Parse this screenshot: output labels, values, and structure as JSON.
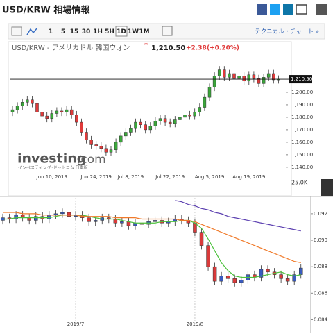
{
  "header": {
    "title": "USD/KRW 相場情報",
    "toolbar": [
      "1",
      "5",
      "15",
      "30",
      "1H",
      "5H",
      "1D",
      "1W",
      "1M"
    ],
    "active_index": 6,
    "technical_link": "テクニカル・チャート »"
  },
  "chart_data": [
    {
      "type": "candlestick",
      "title": "USD/KRW - アメリカドル 韓国ウォン",
      "last": {
        "value": 1210.5,
        "label": "1,210.50"
      },
      "change": "+2.38",
      "change_pct": "(+0.20%)",
      "watermark": "investing",
      "watermark_domain": ".com",
      "watermark_sub": "インベスティング･ドットコム 日本版",
      "volume_label": "25.0K",
      "up_color": "#3aa83a",
      "down_color": "#e03a3a",
      "categories": [
        null,
        null,
        null,
        null,
        null,
        null,
        null,
        null,
        "Jun 10, 2019",
        null,
        null,
        null,
        null,
        null,
        null,
        null,
        null,
        "Jun 24, 2019",
        null,
        null,
        null,
        null,
        null,
        null,
        "Jul 8, 2019",
        null,
        null,
        null,
        null,
        null,
        null,
        null,
        "Jul 22, 2019",
        null,
        null,
        null,
        null,
        null,
        null,
        null,
        "Aug 5, 2019",
        null,
        null,
        null,
        null,
        null,
        null,
        null,
        "Aug 19, 2019",
        null,
        null,
        null,
        null,
        null,
        null
      ],
      "open": [
        1184,
        1186,
        1189,
        1192,
        1194,
        1191,
        1184,
        1181,
        1179,
        1183,
        1185,
        1184,
        1186,
        1182,
        1176,
        1168,
        1162,
        1158,
        1157,
        1155,
        1152,
        1154,
        1160,
        1165,
        1168,
        1171,
        1176,
        1174,
        1170,
        1173,
        1177,
        1179,
        1176,
        1175,
        1178,
        1180,
        1182,
        1181,
        1184,
        1188,
        1196,
        1204,
        1213,
        1218,
        1212,
        1215,
        1211,
        1213,
        1209,
        1214,
        1211,
        1207,
        1212,
        1215,
        1210
      ],
      "high": [
        1189,
        1192,
        1195,
        1197,
        1197,
        1194,
        1187,
        1184,
        1186,
        1188,
        1188,
        1189,
        1189,
        1185,
        1179,
        1171,
        1165,
        1161,
        1160,
        1158,
        1157,
        1163,
        1168,
        1171,
        1174,
        1179,
        1179,
        1177,
        1176,
        1180,
        1182,
        1182,
        1179,
        1181,
        1183,
        1185,
        1185,
        1187,
        1191,
        1199,
        1207,
        1216,
        1221,
        1221,
        1218,
        1218,
        1216,
        1216,
        1217,
        1217,
        1214,
        1215,
        1218,
        1218,
        1213.5
      ],
      "low": [
        1181,
        1183,
        1186,
        1189,
        1188,
        1181,
        1178,
        1176,
        1176,
        1180,
        1181,
        1181,
        1179,
        1173,
        1165,
        1159,
        1155,
        1154,
        1152,
        1149,
        1149,
        1151,
        1157,
        1162,
        1165,
        1168,
        1171,
        1167,
        1167,
        1170,
        1174,
        1173,
        1172,
        1172,
        1175,
        1177,
        1178,
        1178,
        1181,
        1185,
        1193,
        1201,
        1210,
        1209,
        1209,
        1208,
        1208,
        1206,
        1206,
        1208,
        1204,
        1204,
        1209,
        1207,
        1207
      ],
      "close": [
        1186,
        1189,
        1192,
        1194,
        1191,
        1184,
        1181,
        1179,
        1183,
        1185,
        1184,
        1186,
        1182,
        1176,
        1168,
        1162,
        1158,
        1157,
        1155,
        1152,
        1154,
        1160,
        1165,
        1168,
        1171,
        1176,
        1174,
        1170,
        1173,
        1177,
        1179,
        1176,
        1175,
        1178,
        1180,
        1182,
        1181,
        1184,
        1188,
        1196,
        1204,
        1213,
        1218,
        1212,
        1215,
        1211,
        1213,
        1209,
        1214,
        1211,
        1207,
        1212,
        1215,
        1210,
        1210.5
      ],
      "ylim": [
        1121,
        1225
      ],
      "yticks": [
        {
          "value": 1140,
          "label": "1,140.00"
        },
        {
          "value": 1150,
          "label": "1,150.00"
        },
        {
          "value": 1160,
          "label": "1,160.00"
        },
        {
          "value": 1170,
          "label": "1,170.00"
        },
        {
          "value": 1180,
          "label": "1,180.00"
        },
        {
          "value": 1190,
          "label": "1,190.00"
        },
        {
          "value": 1200,
          "label": "1,200.00"
        }
      ]
    },
    {
      "type": "candlestick",
      "up_color": "#3a5bbf",
      "down_color": "#d93a3a",
      "categories": [
        null,
        null,
        null,
        null,
        null,
        null,
        null,
        null,
        null,
        null,
        null,
        "2019/7",
        null,
        null,
        null,
        null,
        null,
        null,
        null,
        null,
        null,
        null,
        null,
        null,
        null,
        null,
        null,
        null,
        null,
        "2019/8",
        null,
        null,
        null,
        null,
        null,
        null,
        null,
        null,
        null,
        null,
        null,
        null,
        null,
        null,
        null,
        null
      ],
      "open": [
        0.0915,
        0.0917,
        0.0916,
        0.0919,
        0.0917,
        0.0915,
        0.0918,
        0.0916,
        0.0919,
        0.092,
        0.0921,
        0.0918,
        0.0919,
        0.0917,
        0.0914,
        0.0915,
        0.0917,
        0.0916,
        0.0913,
        0.0914,
        0.0911,
        0.0913,
        0.0912,
        0.0914,
        0.0915,
        0.0913,
        0.0914,
        0.0916,
        0.0915,
        0.0913,
        0.0906,
        0.0896,
        0.088,
        0.0869,
        0.0873,
        0.0871,
        0.0868,
        0.087,
        0.0874,
        0.0872,
        0.0878,
        0.0876,
        0.0874,
        0.0871,
        0.0869,
        0.0874
      ],
      "high": [
        0.092,
        0.092,
        0.0922,
        0.0922,
        0.092,
        0.0921,
        0.0921,
        0.0922,
        0.0923,
        0.0924,
        0.0924,
        0.0922,
        0.0922,
        0.092,
        0.0918,
        0.092,
        0.092,
        0.0919,
        0.0917,
        0.0917,
        0.0916,
        0.0916,
        0.0917,
        0.0918,
        0.0918,
        0.0917,
        0.0919,
        0.0919,
        0.0918,
        0.0916,
        0.0909,
        0.0899,
        0.0883,
        0.0876,
        0.0876,
        0.0874,
        0.0873,
        0.0877,
        0.0877,
        0.0881,
        0.0881,
        0.0879,
        0.0877,
        0.0874,
        0.0877,
        0.0882
      ],
      "low": [
        0.0912,
        0.0913,
        0.0913,
        0.0914,
        0.0912,
        0.0912,
        0.0913,
        0.0913,
        0.0916,
        0.0917,
        0.0915,
        0.0915,
        0.0914,
        0.0911,
        0.0911,
        0.0912,
        0.0913,
        0.091,
        0.091,
        0.0908,
        0.0908,
        0.0909,
        0.0909,
        0.0911,
        0.091,
        0.091,
        0.0911,
        0.0912,
        0.091,
        0.0903,
        0.0893,
        0.0877,
        0.0866,
        0.0866,
        0.0868,
        0.0865,
        0.0865,
        0.0867,
        0.0869,
        0.0869,
        0.0873,
        0.0871,
        0.0868,
        0.0866,
        0.0866,
        0.0871
      ],
      "close": [
        0.0917,
        0.0916,
        0.0919,
        0.0917,
        0.0915,
        0.0918,
        0.0916,
        0.0919,
        0.092,
        0.0921,
        0.0918,
        0.0919,
        0.0917,
        0.0914,
        0.0915,
        0.0917,
        0.0916,
        0.0913,
        0.0914,
        0.0911,
        0.0913,
        0.0912,
        0.0914,
        0.0915,
        0.0913,
        0.0914,
        0.0916,
        0.0915,
        0.0913,
        0.0906,
        0.0896,
        0.088,
        0.0869,
        0.0873,
        0.0871,
        0.0868,
        0.087,
        0.0874,
        0.0872,
        0.0878,
        0.0876,
        0.0874,
        0.0871,
        0.0869,
        0.0874,
        0.0879
      ],
      "series": [
        {
          "color": "#4cc23c",
          "values": [
            0.0916,
            0.0916,
            0.0917,
            0.0917,
            0.0917,
            0.0917,
            0.0917,
            0.0917,
            0.0918,
            0.0919,
            0.0919,
            0.0919,
            0.0919,
            0.0918,
            0.0917,
            0.0916,
            0.0916,
            0.0916,
            0.0915,
            0.0914,
            0.0913,
            0.0913,
            0.0913,
            0.0913,
            0.0914,
            0.0914,
            0.0914,
            0.0915,
            0.0915,
            0.0913,
            0.0909,
            0.0901,
            0.0892,
            0.0883,
            0.0877,
            0.0873,
            0.0872,
            0.0872,
            0.0872,
            0.0873,
            0.0874,
            0.0875,
            0.0876,
            0.0874,
            0.0873,
            0.0874
          ]
        },
        {
          "color": "#f07a2a",
          "values": [
            0.0921,
            0.0921,
            0.0921,
            0.092,
            0.092,
            0.092,
            0.0919,
            0.0919,
            0.0919,
            0.0919,
            0.0919,
            0.0919,
            0.0918,
            0.0918,
            0.0918,
            0.0918,
            0.0918,
            0.0917,
            0.0917,
            0.0917,
            0.0917,
            0.0916,
            0.0916,
            0.0916,
            0.0916,
            0.0916,
            0.0916,
            0.0915,
            0.0915,
            0.0914,
            0.0912,
            0.091,
            0.0908,
            0.0906,
            0.0904,
            0.0902,
            0.09,
            0.0898,
            0.0896,
            0.0894,
            0.0892,
            0.089,
            0.0888,
            0.0886,
            0.0884,
            0.0883
          ]
        },
        {
          "color": "#5b3fb0",
          "values": [
            null,
            null,
            null,
            null,
            null,
            null,
            null,
            null,
            null,
            null,
            null,
            null,
            null,
            null,
            null,
            null,
            null,
            null,
            null,
            null,
            null,
            null,
            null,
            null,
            null,
            null,
            0.093,
            0.0929,
            0.0927,
            0.0926,
            0.0924,
            0.0923,
            0.0921,
            0.092,
            0.0918,
            0.0917,
            0.0916,
            0.0915,
            0.0914,
            0.0913,
            0.0912,
            0.0911,
            0.091,
            0.0909,
            0.0908,
            0.0907
          ]
        }
      ],
      "ylim": [
        0.0835,
        0.0932
      ],
      "yticks": [
        0.084,
        0.086,
        0.088,
        {
          "value": 0.09,
          "label": "0.090"
        },
        0.092
      ]
    }
  ]
}
